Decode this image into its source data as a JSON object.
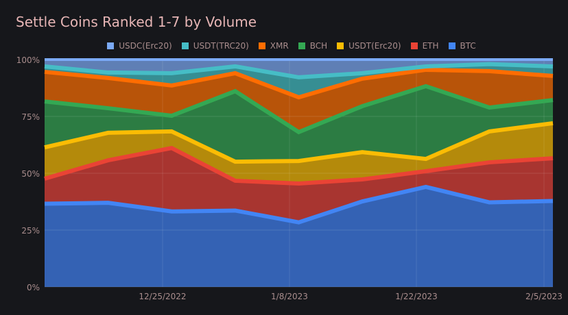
{
  "chart_data": {
    "type": "area",
    "stacked": "percent",
    "title": "Settle Coins Ranked 1-7 by Volume",
    "xlabel": "",
    "ylabel": "",
    "ylim": [
      0,
      100
    ],
    "y_ticks": [
      "0%",
      "25%",
      "50%",
      "75%",
      "100%"
    ],
    "x_ticks": [
      "12/25/2022",
      "1/8/2023",
      "1/22/2023",
      "2/5/2023"
    ],
    "x": [
      "12/12/2022",
      "12/19/2022",
      "12/26/2022",
      "1/2/2023",
      "1/9/2023",
      "1/16/2023",
      "1/23/2023",
      "1/30/2023",
      "2/6/2023"
    ],
    "legend_position": "top",
    "grid": true,
    "series": [
      {
        "name": "BTC",
        "color": "#4285f4",
        "fill": "#3462b4",
        "cumulative": [
          36.6,
          37,
          33.2,
          33.6,
          28.4,
          37.6,
          44,
          37.2,
          37.8
        ]
      },
      {
        "name": "ETH",
        "color": "#ea4335",
        "fill": "#a83530",
        "cumulative": [
          47.6,
          55.7,
          61.1,
          46.7,
          45.5,
          47.3,
          50.9,
          54.8,
          56.6
        ]
      },
      {
        "name": "USDT(Erc20)",
        "color": "#fbbc04",
        "fill": "#b48a0b",
        "cumulative": [
          61.4,
          67.8,
          68.4,
          55.1,
          55.4,
          59.3,
          56.3,
          68.4,
          72.0
        ]
      },
      {
        "name": "BCH",
        "color": "#34a853",
        "fill": "#2c7c43",
        "cumulative": [
          81.6,
          78.6,
          75.3,
          86.1,
          68.1,
          79.5,
          88.3,
          78.9,
          82.2
        ]
      },
      {
        "name": "XMR",
        "color": "#ff6d01",
        "fill": "#b85409",
        "cumulative": [
          94.6,
          91.9,
          88.6,
          94.0,
          83.4,
          91.6,
          95.5,
          94.9,
          92.8
        ]
      },
      {
        "name": "USDT(TRC20)",
        "color": "#46bdc6",
        "fill": "#368e93",
        "cumulative": [
          97,
          94.3,
          94,
          97,
          92.2,
          94,
          97,
          98,
          97
        ]
      },
      {
        "name": "USDC(Erc20)",
        "color": "#7baaf7",
        "fill": "#5f7fb5",
        "cumulative": [
          100,
          100,
          100,
          100,
          100,
          100,
          100,
          100,
          100
        ]
      }
    ]
  }
}
